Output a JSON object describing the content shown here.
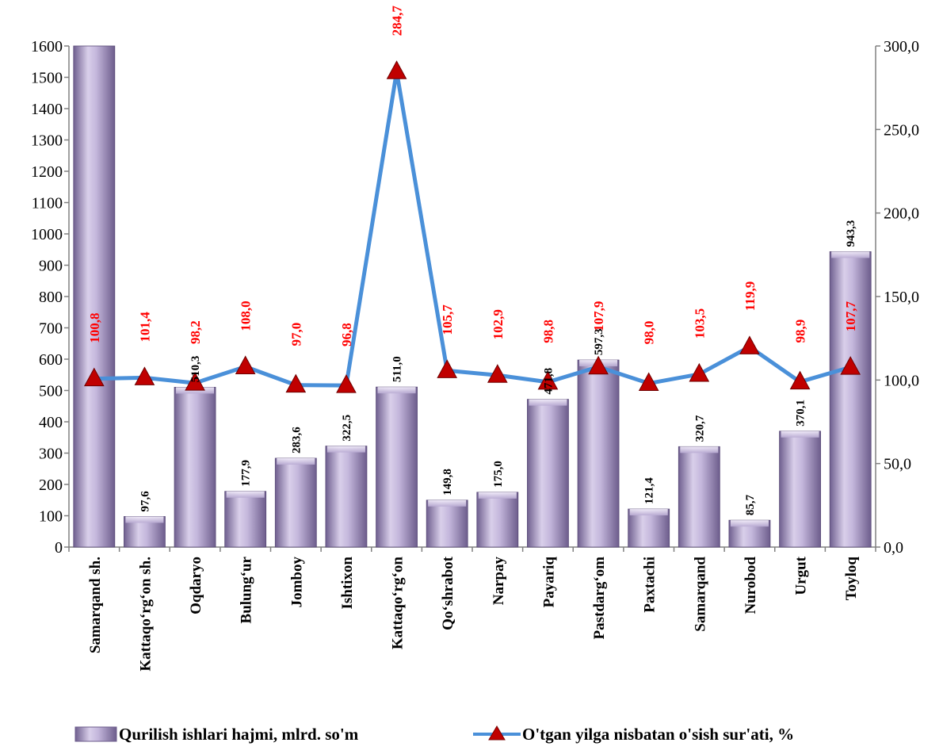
{
  "chart_data": {
    "type": "bar",
    "categories": [
      "Samarqand sh.",
      "Kattaqo‘rg‘on sh.",
      "Oqdaryo",
      "Bulung‘ur",
      "Jomboy",
      "Ishtixon",
      "Kattaqo‘rg‘on",
      "Qo‘shrabot",
      "Narpay",
      "Payariq",
      "Pastdarg‘om",
      "Paxtachi",
      "Samarqand",
      "Nurobod",
      "Urgut",
      "Toyloq"
    ],
    "series": [
      {
        "name": "Qurilish ishlari hajmi, mlrd. so'm",
        "type": "bar",
        "axis": "left",
        "values": [
          1600,
          97.6,
          510.3,
          177.9,
          283.6,
          322.5,
          511.0,
          149.8,
          175.0,
          471.8,
          597.3,
          121.4,
          320.7,
          85.7,
          370.1,
          943.3
        ],
        "labels": [
          "",
          "97,6",
          "510,3",
          "177,9",
          "283,6",
          "322,5",
          "511,0",
          "149,8",
          "175,0",
          "471,8",
          "597,3",
          "121,4",
          "320,7",
          "85,7",
          "370,1",
          "943,3"
        ],
        "color": "#a99bc4"
      },
      {
        "name": "O'tgan yilga nisbatan o'sish sur'ati, %",
        "type": "line",
        "axis": "right",
        "values": [
          100.8,
          101.4,
          98.2,
          108.0,
          97.0,
          96.8,
          284.7,
          105.7,
          102.9,
          98.8,
          107.9,
          98.0,
          103.5,
          119.9,
          98.9,
          107.7
        ],
        "labels": [
          "100,8",
          "101,4",
          "98,2",
          "108,0",
          "97,0",
          "96,8",
          "284,7",
          "105,7",
          "102,9",
          "98,8",
          "107,9",
          "98,0",
          "103,5",
          "119,9",
          "98,9",
          "107,7"
        ],
        "color": "#4a90d9",
        "marker_color": "#c00000",
        "label_color": "#ff0000"
      }
    ],
    "left_axis": {
      "ylim": [
        0,
        1600
      ],
      "ticks": [
        "0",
        "100",
        "200",
        "300",
        "400",
        "500",
        "600",
        "700",
        "800",
        "900",
        "1000",
        "1100",
        "1200",
        "1300",
        "1400",
        "1500",
        "1600"
      ]
    },
    "right_axis": {
      "ylim": [
        0,
        300
      ],
      "ticks": [
        "0,0",
        "50,0",
        "100,0",
        "150,0",
        "200,0",
        "250,0",
        "300,0"
      ]
    },
    "title": "",
    "xlabel": "",
    "grid": false,
    "legend_position": "bottom"
  }
}
